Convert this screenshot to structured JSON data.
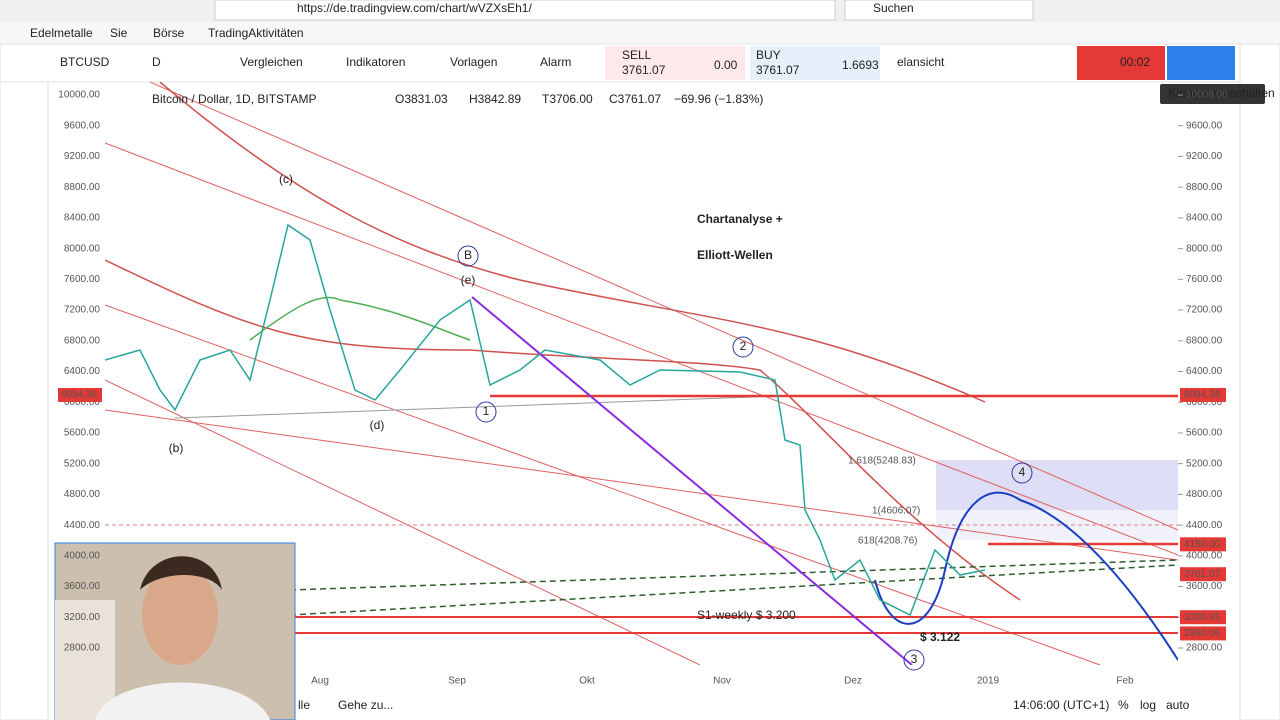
{
  "browser": {
    "url": "https://de.tradingview.com/chart/wVZXsEh1/",
    "search": "Suchen",
    "bookmarks": [
      "Edelmetalle",
      "Sie",
      "Börse",
      "TradingAktivitäten"
    ]
  },
  "toolbar": {
    "symbol": "BTCUSD",
    "interval": "D",
    "buttons": [
      "Vergleichen",
      "Indikatoren",
      "Vorlagen",
      "Alarm"
    ],
    "sell": {
      "label": "SELL",
      "price": "3761.07"
    },
    "spread": "0.00",
    "buy": {
      "label": "BUY",
      "price": "3761.07"
    },
    "quantity": "1.6693",
    "layout": "elansicht",
    "timer": "00:02",
    "tooltip": "Kamera umschalten"
  },
  "chart": {
    "legend": "Bitcoin / Dollar, 1D, BITSTAMP",
    "ohlc": [
      "O3831.03",
      "H3842.89",
      "T3706.00",
      "C3761.07",
      "−69.96 (−1.83%)"
    ],
    "ylim": [
      2800,
      10000
    ],
    "yticks": [
      {
        "value": 10000,
        "label": "10000.00"
      },
      {
        "value": 9600,
        "label": "9600.00"
      },
      {
        "value": 9200,
        "label": "9200.00"
      },
      {
        "value": 8800,
        "label": "8800.00"
      },
      {
        "value": 8400,
        "label": "8400.00"
      },
      {
        "value": 8000,
        "label": "8000.00"
      },
      {
        "value": 7600,
        "label": "7600.00"
      },
      {
        "value": 7200,
        "label": "7200.00"
      },
      {
        "value": 6800,
        "label": "6800.00"
      },
      {
        "value": 6400,
        "label": "6400.00"
      },
      {
        "value": 6000,
        "label": "6000.00"
      },
      {
        "value": 5600,
        "label": "5600.00"
      },
      {
        "value": 5200,
        "label": "5200.00"
      },
      {
        "value": 4800,
        "label": "4800.00"
      },
      {
        "value": 4400,
        "label": "4400.00"
      },
      {
        "value": 4000,
        "label": "4000.00"
      },
      {
        "value": 3600,
        "label": "3600.00"
      },
      {
        "value": 3200,
        "label": "3200.00"
      },
      {
        "value": 2800,
        "label": "2800.00"
      }
    ],
    "price_tags": [
      {
        "value": 6094.38,
        "label": "6094.38"
      },
      {
        "value": 4150,
        "label": "4150.00"
      },
      {
        "value": 3761.07,
        "label": "3761.07"
      },
      {
        "value": 3200.95,
        "label": "3200.95"
      },
      {
        "value": 2990.06,
        "label": "2990.06"
      }
    ],
    "xlabels": [
      "Aug",
      "Sep",
      "Okt",
      "Nov",
      "Dez",
      "2019",
      "Feb"
    ],
    "title": [
      "Chartanalyse +",
      "Elliott-Wellen"
    ],
    "waves": [
      "(c)",
      "(b)",
      "(d)",
      "(e)",
      "B",
      "1",
      "2",
      "3",
      "4"
    ],
    "fib": [
      "1.618(5248.83)",
      "1(4606.07)",
      "618(4208.76)"
    ],
    "support": "S1-weekly $ 3.200",
    "low": "$ 3.122"
  },
  "bottom": {
    "partial": "lle",
    "goto": "Gehe zu...",
    "time": "14:06:00 (UTC+1)",
    "percent": "%",
    "log": "log",
    "auto": "auto"
  }
}
